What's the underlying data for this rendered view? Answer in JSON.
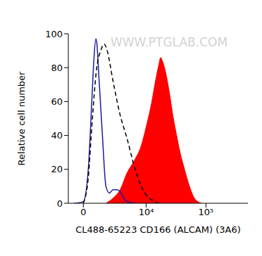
{
  "chart_data": {
    "type": "histogram",
    "x_label": "CL488-65223 CD166 (ALCAM) (3A6)",
    "y_label": "Relative cell number",
    "annotations": [
      "WWW.PTGLAB.COM"
    ],
    "xlim": [
      -1100,
      500000
    ],
    "xticks": [
      0,
      {
        "value": 10000,
        "label": "10⁴"
      },
      {
        "value": 100000,
        "label": "10⁵"
      }
    ],
    "ylim": [
      0,
      100
    ],
    "yticks": [
      0,
      20,
      40,
      60,
      80,
      100
    ],
    "grid": false,
    "series": [
      {
        "type": "area",
        "color": "#ff0000",
        "line_style": "solid",
        "x": [
          1774,
          2541,
          3500,
          4690,
          6240,
          8260,
          10000,
          12470,
          14000,
          16400,
          17500,
          18770,
          21000,
          24600,
          28000,
          32400,
          37000,
          42400,
          48000,
          55600,
          64000,
          72900,
          85000
        ],
        "values": [
          0,
          3,
          8,
          18,
          25,
          34,
          45,
          60,
          70,
          82,
          86,
          84,
          78,
          65,
          52,
          40,
          30,
          22,
          15,
          8,
          3,
          1,
          0
        ]
      },
      {
        "type": "line",
        "color": "#1c1c9c",
        "line_style": "solid",
        "x": [
          -650,
          0,
          346,
          599,
          757,
          900,
          974,
          1144,
          1448,
          1774,
          2135,
          2541,
          3000,
          3500,
          4060,
          4690,
          6240
        ],
        "values": [
          0,
          1,
          20,
          60,
          85,
          97,
          95,
          75,
          40,
          10,
          6,
          8,
          8,
          7,
          3,
          1,
          0
        ]
      },
      {
        "type": "line",
        "color": "#000000",
        "line_style": "dashed",
        "x": [
          0,
          346,
          599,
          974,
          1300,
          1600,
          1900,
          2541,
          3500,
          4690,
          6240,
          8260,
          10000,
          12470,
          16400
        ],
        "values": [
          0,
          15,
          45,
          80,
          90,
          94,
          90,
          72,
          52,
          38,
          22,
          10,
          5,
          2,
          0
        ]
      }
    ]
  }
}
